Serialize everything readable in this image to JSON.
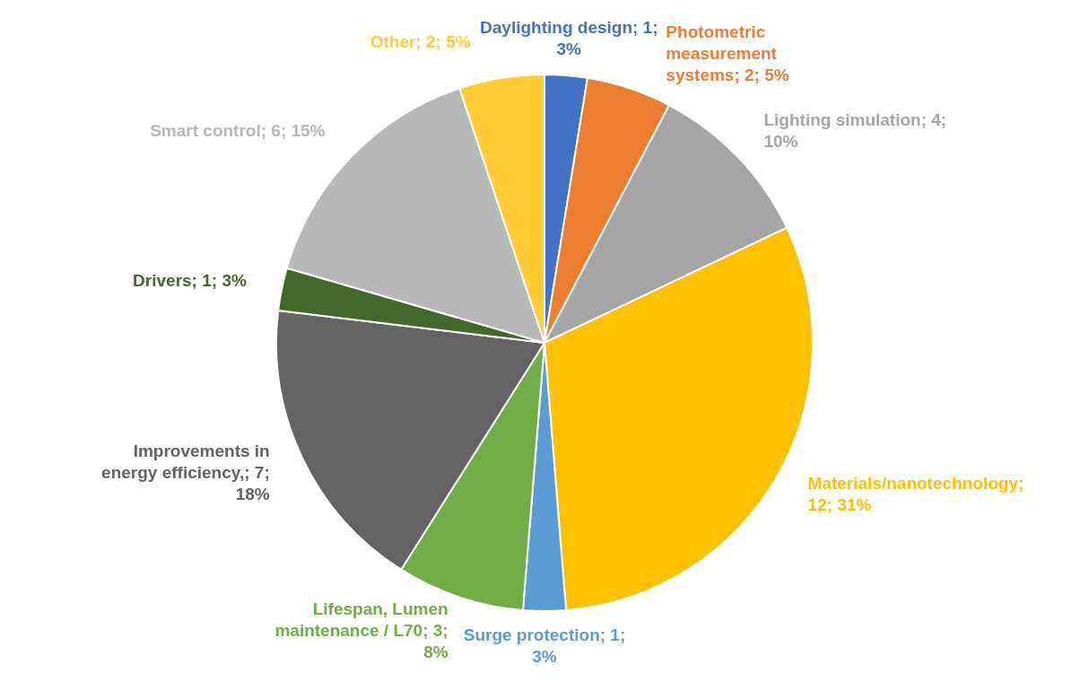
{
  "chart_data": {
    "type": "pie",
    "categories": [
      "Daylighting design",
      "Photometric measurement systems",
      "Lighting simulation",
      "Materials/nanotechnology",
      "Surge protection",
      "Lifespan, Lumen maintenance / L70",
      "Improvements in energy efficiency",
      "Drivers",
      "Smart control",
      "Other"
    ],
    "values": [
      1,
      2,
      4,
      12,
      1,
      3,
      7,
      1,
      6,
      2
    ],
    "value_labels": [
      "; 1; 3%",
      "; 2; 5%",
      "; 4; 10%",
      "; 12; 31%",
      "; 1; 3%",
      "; 3; 8%",
      ",; 7; 18%",
      "; 1; 3%",
      "; 6; 15%",
      "; 2; 5%"
    ],
    "colors": [
      "#4472c4",
      "#ed7d31",
      "#a5a5a5",
      "#ffc000",
      "#5b9bd5",
      "#70ad47",
      "#636363",
      "#43682b",
      "#b7b7b7",
      "#ffcd33"
    ]
  }
}
